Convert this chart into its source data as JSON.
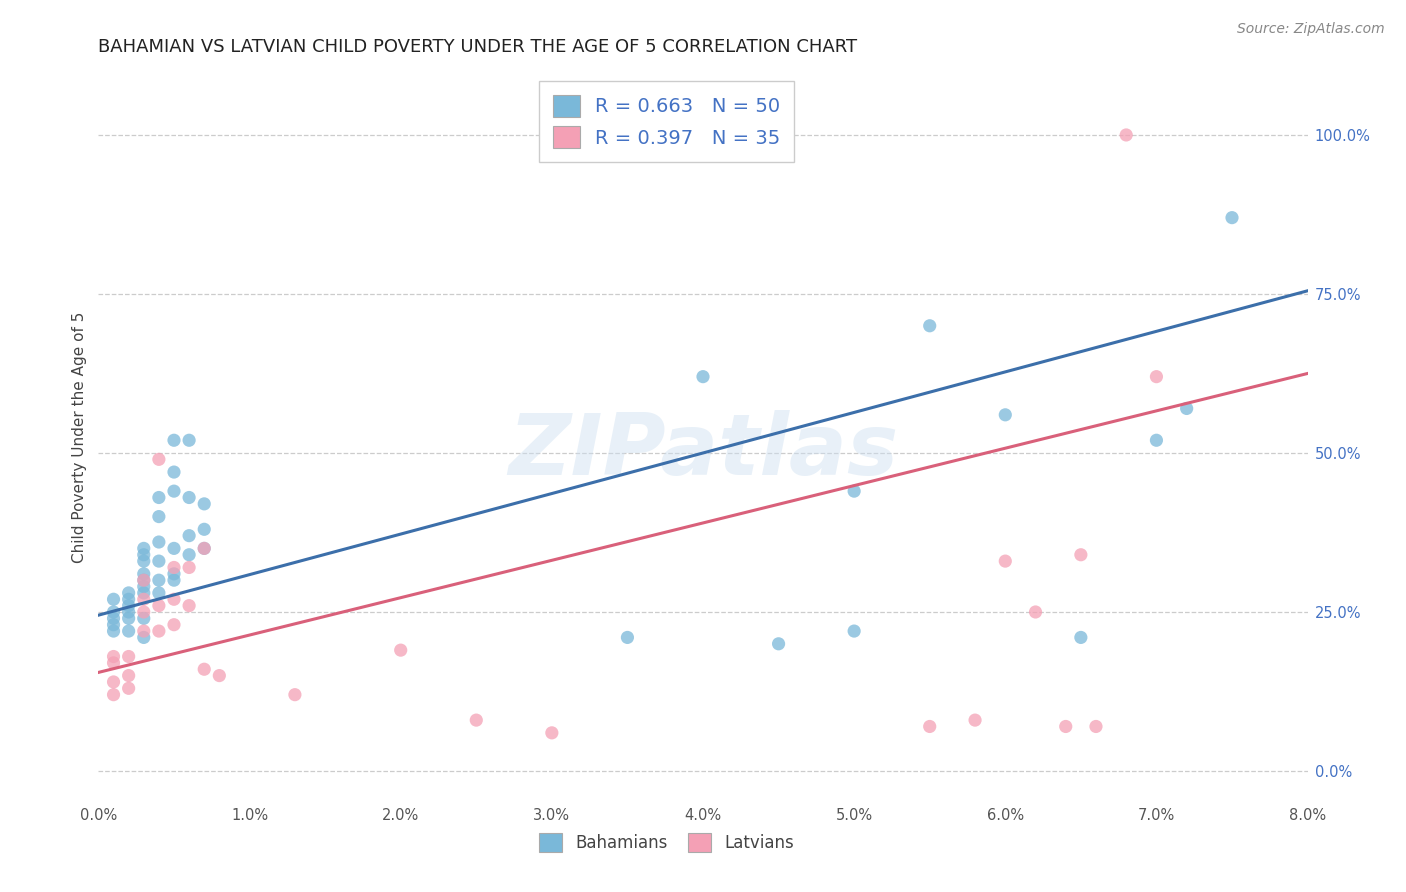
{
  "title": "BAHAMIAN VS LATVIAN CHILD POVERTY UNDER THE AGE OF 5 CORRELATION CHART",
  "source": "Source: ZipAtlas.com",
  "ylabel": "Child Poverty Under the Age of 5",
  "xlim": [
    0.0,
    0.08
  ],
  "ylim": [
    -0.05,
    1.1
  ],
  "yticks": [
    0.0,
    0.25,
    0.5,
    0.75,
    1.0
  ],
  "xticks": [
    0.0,
    0.01,
    0.02,
    0.03,
    0.04,
    0.05,
    0.06,
    0.07,
    0.08
  ],
  "blue_R": 0.663,
  "blue_N": 50,
  "pink_R": 0.397,
  "pink_N": 35,
  "blue_color": "#7ab8d9",
  "pink_color": "#f4a0b5",
  "blue_line_color": "#3c6faa",
  "pink_line_color": "#d9607a",
  "background_color": "#ffffff",
  "grid_color": "#cccccc",
  "legend_label_blue": "Bahamians",
  "legend_label_pink": "Latvians",
  "blue_x": [
    0.001,
    0.001,
    0.001,
    0.001,
    0.001,
    0.002,
    0.002,
    0.002,
    0.002,
    0.002,
    0.002,
    0.003,
    0.003,
    0.003,
    0.003,
    0.003,
    0.003,
    0.003,
    0.003,
    0.003,
    0.004,
    0.004,
    0.004,
    0.004,
    0.004,
    0.004,
    0.005,
    0.005,
    0.005,
    0.005,
    0.005,
    0.005,
    0.006,
    0.006,
    0.006,
    0.006,
    0.007,
    0.007,
    0.007,
    0.035,
    0.04,
    0.045,
    0.05,
    0.05,
    0.055,
    0.06,
    0.065,
    0.07,
    0.072,
    0.075
  ],
  "blue_y": [
    0.22,
    0.23,
    0.24,
    0.25,
    0.27,
    0.22,
    0.24,
    0.25,
    0.26,
    0.27,
    0.28,
    0.21,
    0.28,
    0.29,
    0.3,
    0.31,
    0.33,
    0.34,
    0.35,
    0.24,
    0.28,
    0.3,
    0.33,
    0.36,
    0.4,
    0.43,
    0.3,
    0.31,
    0.35,
    0.44,
    0.47,
    0.52,
    0.34,
    0.37,
    0.43,
    0.52,
    0.35,
    0.38,
    0.42,
    0.21,
    0.62,
    0.2,
    0.22,
    0.44,
    0.7,
    0.56,
    0.21,
    0.52,
    0.57,
    0.87
  ],
  "pink_x": [
    0.001,
    0.001,
    0.001,
    0.001,
    0.002,
    0.002,
    0.002,
    0.003,
    0.003,
    0.003,
    0.003,
    0.004,
    0.004,
    0.004,
    0.005,
    0.005,
    0.005,
    0.006,
    0.006,
    0.007,
    0.007,
    0.008,
    0.013,
    0.02,
    0.025,
    0.03,
    0.055,
    0.058,
    0.06,
    0.062,
    0.064,
    0.065,
    0.066,
    0.068,
    0.07
  ],
  "pink_y": [
    0.12,
    0.14,
    0.17,
    0.18,
    0.13,
    0.15,
    0.18,
    0.22,
    0.25,
    0.27,
    0.3,
    0.22,
    0.26,
    0.49,
    0.23,
    0.27,
    0.32,
    0.26,
    0.32,
    0.16,
    0.35,
    0.15,
    0.12,
    0.19,
    0.08,
    0.06,
    0.07,
    0.08,
    0.33,
    0.25,
    0.07,
    0.34,
    0.07,
    1.0,
    0.62
  ],
  "blue_line_x0": 0.0,
  "blue_line_y0": 0.245,
  "blue_line_x1": 0.08,
  "blue_line_y1": 0.755,
  "pink_line_x0": 0.0,
  "pink_line_y0": 0.155,
  "pink_line_x1": 0.08,
  "pink_line_y1": 0.625,
  "watermark": "ZIPatlas",
  "title_fontsize": 13,
  "axis_label_fontsize": 11,
  "tick_fontsize": 10.5,
  "source_fontsize": 10
}
